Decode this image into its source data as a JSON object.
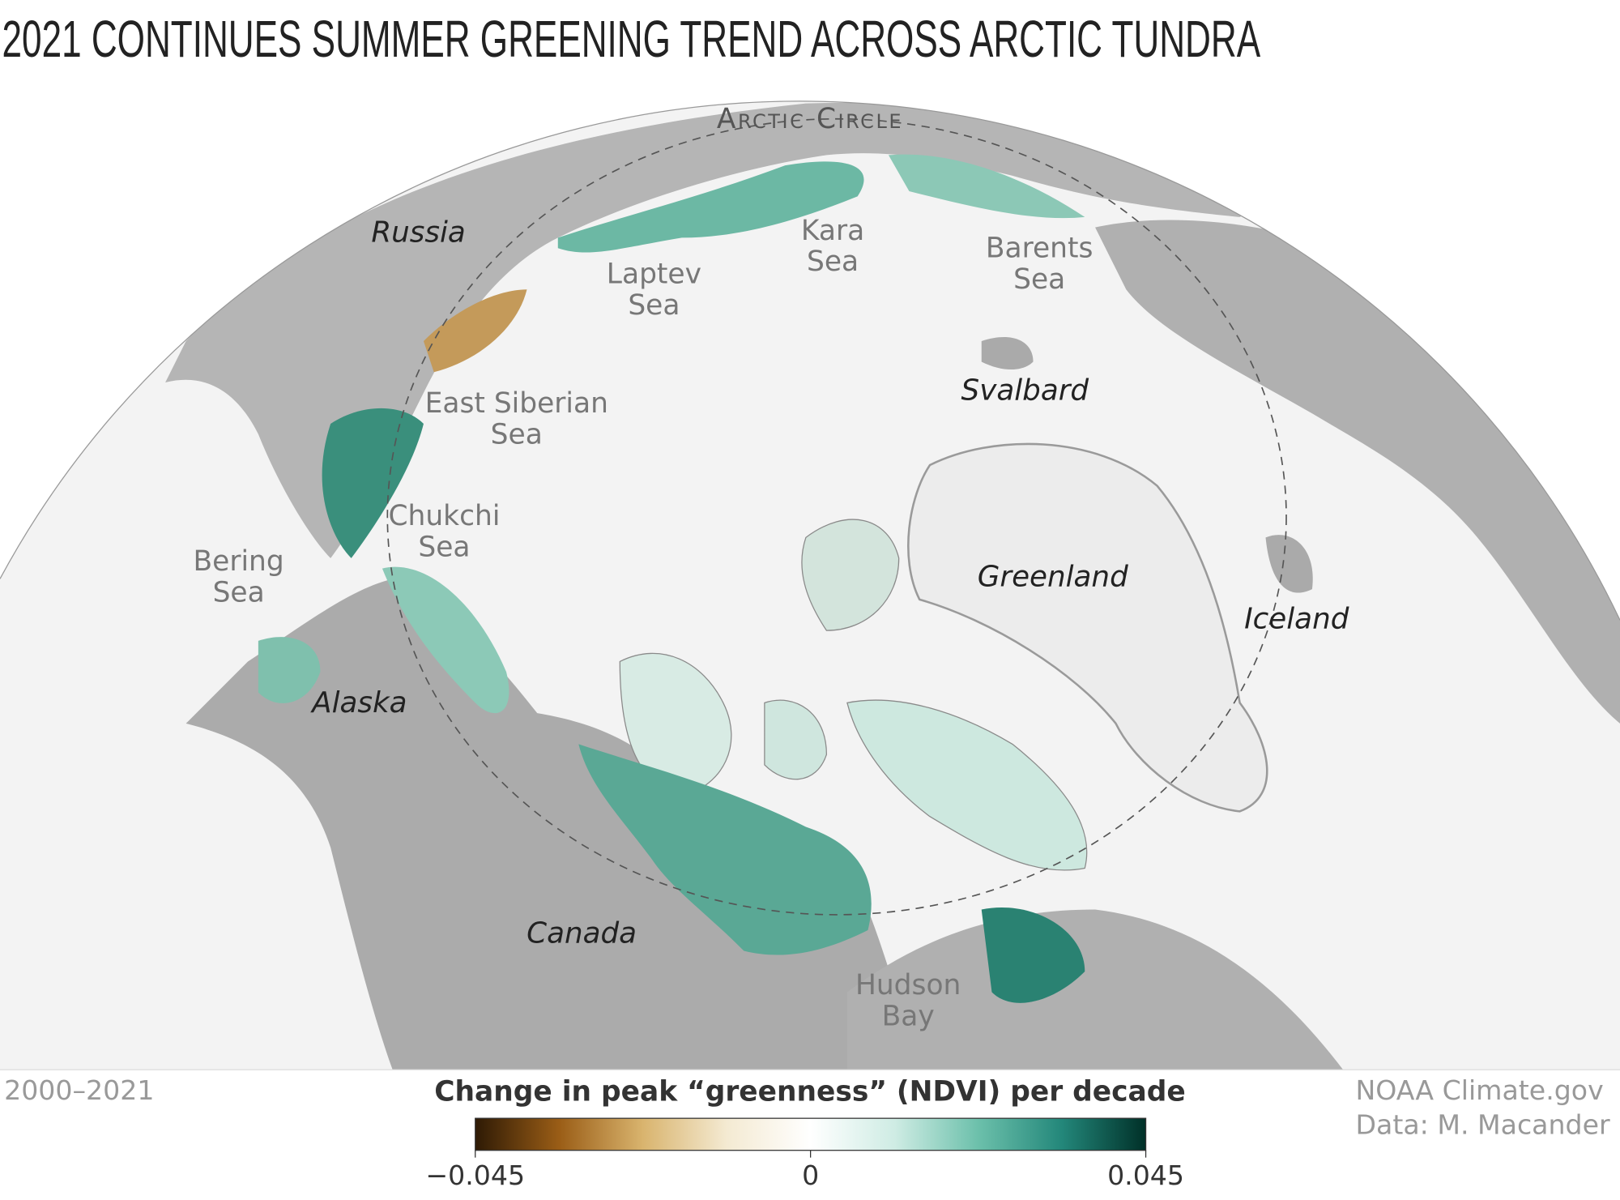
{
  "title": "2021 CONTINUES SUMMER GREENING TREND ACROSS ARCTIC TUNDRA",
  "date_range": "2000–2021",
  "credits": [
    "NOAA Climate.gov",
    "Data: M. Macander"
  ],
  "arctic_circle": "Arctic Circle",
  "seas": [
    {
      "lines": [
        "Kara",
        "Sea"
      ]
    },
    {
      "lines": [
        "Barents",
        "Sea"
      ]
    },
    {
      "lines": [
        "Laptev",
        "Sea"
      ]
    },
    {
      "lines": [
        "East Siberian",
        "Sea"
      ]
    },
    {
      "lines": [
        "Chukchi",
        "Sea"
      ]
    },
    {
      "lines": [
        "Bering",
        "Sea"
      ]
    },
    {
      "lines": [
        "Hudson",
        "Bay"
      ]
    }
  ],
  "places": [
    "Russia",
    "Svalbard",
    "Greenland",
    "Iceland",
    "Alaska",
    "Canada"
  ],
  "colorbar": {
    "title": "Change in peak “greenness” (NDVI) per decade",
    "range": [
      -0.045,
      0.045
    ],
    "ticks": [
      {
        "value": -0.045,
        "label": "−0.045"
      },
      0,
      0.045
    ],
    "colors": [
      "#2e1a05",
      "#9a5d16",
      "#d9b46e",
      "#f4ead2",
      "#ffffff",
      "#cfece4",
      "#6cc0ab",
      "#23877a",
      "#003028"
    ]
  }
}
